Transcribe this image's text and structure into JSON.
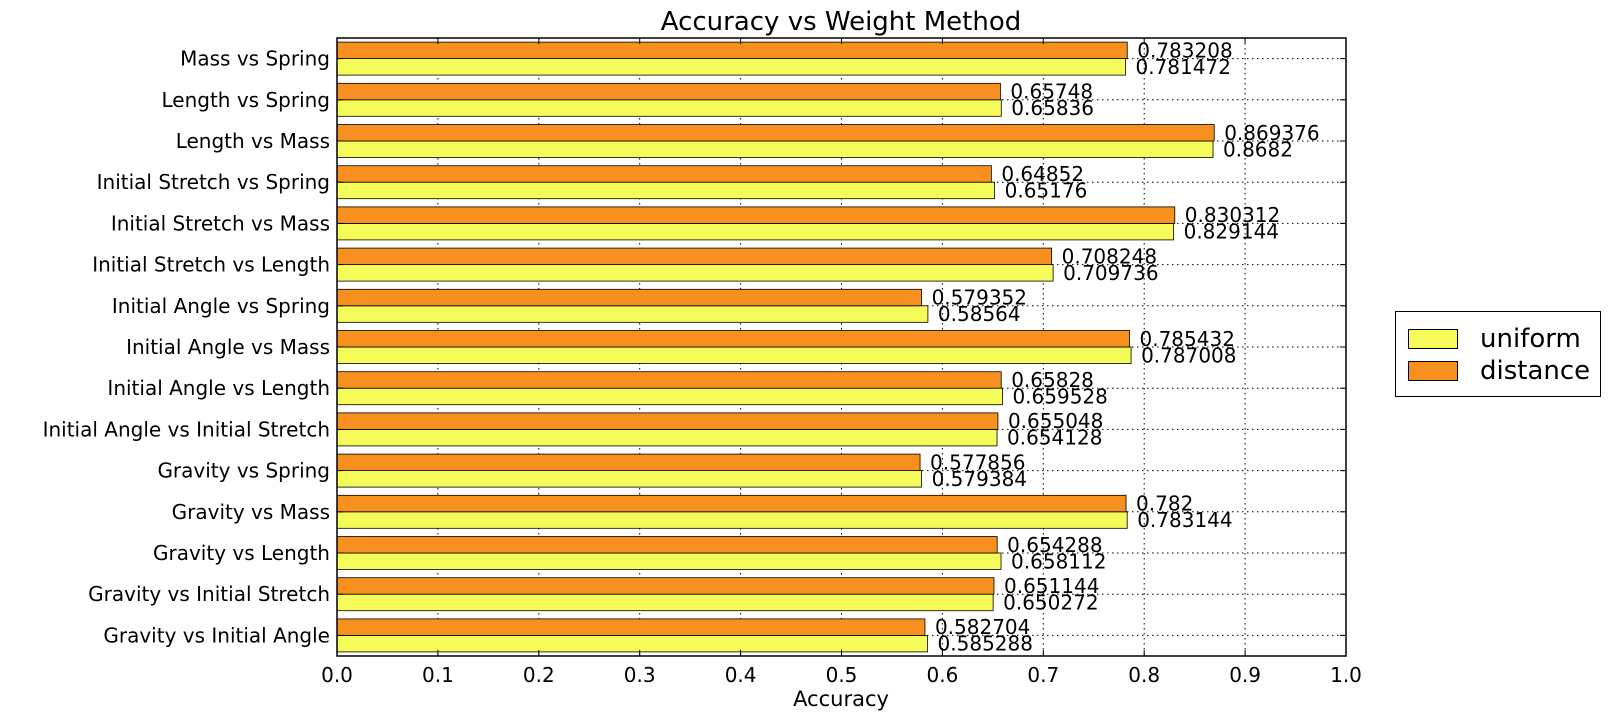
{
  "chart_data": {
    "type": "bar",
    "orientation": "horizontal",
    "title": "Accuracy vs Weight Method",
    "xlabel": "Accuracy",
    "ylabel": "",
    "xlim": [
      0.0,
      1.0
    ],
    "xticks": [
      "0.0",
      "0.1",
      "0.2",
      "0.3",
      "0.4",
      "0.5",
      "0.6",
      "0.7",
      "0.8",
      "0.9",
      "1.0"
    ],
    "grid": true,
    "legend_position": "right",
    "categories": [
      "Gravity vs Initial Angle",
      "Gravity vs Initial Stretch",
      "Gravity vs Length",
      "Gravity vs Mass",
      "Gravity vs Spring",
      "Initial Angle vs Initial Stretch",
      "Initial Angle vs Length",
      "Initial Angle vs Mass",
      "Initial Angle vs Spring",
      "Initial Stretch vs Length",
      "Initial Stretch vs Mass",
      "Initial Stretch vs Spring",
      "Length vs Mass",
      "Length vs Spring",
      "Mass vs Spring"
    ],
    "series": [
      {
        "name": "uniform",
        "color": "#f5fc5a",
        "values": [
          0.585288,
          0.650272,
          0.658112,
          0.783144,
          0.579384,
          0.654128,
          0.659528,
          0.787008,
          0.58564,
          0.709736,
          0.829144,
          0.65176,
          0.8682,
          0.65836,
          0.781472
        ],
        "labels": [
          "0.585288",
          "0.650272",
          "0.658112",
          "0.783144",
          "0.579384",
          "0.654128",
          "0.659528",
          "0.787008",
          "0.58564",
          "0.709736",
          "0.829144",
          "0.65176",
          "0.8682",
          "0.65836",
          "0.781472"
        ]
      },
      {
        "name": "distance",
        "color": "#f7901e",
        "values": [
          0.582704,
          0.651144,
          0.654288,
          0.782,
          0.577856,
          0.655048,
          0.65828,
          0.785432,
          0.579352,
          0.708248,
          0.830312,
          0.64852,
          0.869376,
          0.65748,
          0.783208
        ],
        "labels": [
          "0.582704",
          "0.651144",
          "0.654288",
          "0.782",
          "0.577856",
          "0.655048",
          "0.65828",
          "0.785432",
          "0.579352",
          "0.708248",
          "0.830312",
          "0.64852",
          "0.869376",
          "0.65748",
          "0.783208"
        ]
      }
    ]
  }
}
